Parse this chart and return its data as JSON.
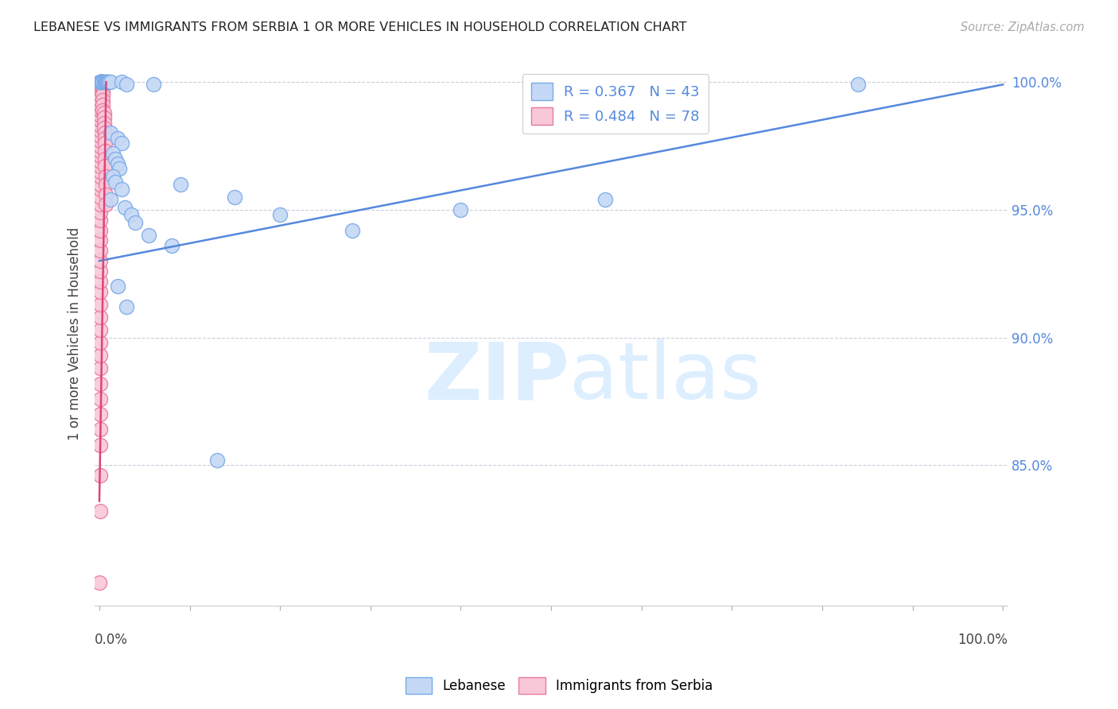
{
  "title": "LEBANESE VS IMMIGRANTS FROM SERBIA 1 OR MORE VEHICLES IN HOUSEHOLD CORRELATION CHART",
  "source": "Source: ZipAtlas.com",
  "ylabel": "1 or more Vehicles in Household",
  "legend_blue": "R = 0.367   N = 43",
  "legend_pink": "R = 0.484   N = 78",
  "legend_label_blue": "Lebanese",
  "legend_label_pink": "Immigrants from Serbia",
  "title_color": "#222222",
  "source_color": "#aaaaaa",
  "blue_color": "#c5d8f5",
  "blue_edge_color": "#7aaae8",
  "pink_color": "#f9c8d8",
  "pink_edge_color": "#e87aa0",
  "blue_trend_color": "#5588dd",
  "pink_trend_color": "#dd4477",
  "watermark_color": "#ddeeff",
  "ytick_vals": [
    0.85,
    0.9,
    0.95,
    1.0
  ],
  "ytick_labels": [
    "85.0%",
    "90.0%",
    "95.0%",
    "100.0%"
  ],
  "ylim": [
    0.795,
    1.008
  ],
  "xlim": [
    -0.005,
    1.005
  ],
  "blue_scatter": [
    [
      0.001,
      1.0
    ],
    [
      0.001,
      1.0
    ],
    [
      0.001,
      1.0
    ],
    [
      0.002,
      1.0
    ],
    [
      0.003,
      1.0
    ],
    [
      0.004,
      1.0
    ],
    [
      0.005,
      1.0
    ],
    [
      0.006,
      1.0
    ],
    [
      0.007,
      1.0
    ],
    [
      0.008,
      1.0
    ],
    [
      0.009,
      1.0
    ],
    [
      0.01,
      1.0
    ],
    [
      0.011,
      1.0
    ],
    [
      0.012,
      1.0
    ],
    [
      0.025,
      1.0
    ],
    [
      0.03,
      0.999
    ],
    [
      0.06,
      0.999
    ],
    [
      0.012,
      0.98
    ],
    [
      0.02,
      0.978
    ],
    [
      0.025,
      0.976
    ],
    [
      0.015,
      0.972
    ],
    [
      0.018,
      0.97
    ],
    [
      0.02,
      0.968
    ],
    [
      0.022,
      0.966
    ],
    [
      0.015,
      0.963
    ],
    [
      0.018,
      0.961
    ],
    [
      0.025,
      0.958
    ],
    [
      0.012,
      0.954
    ],
    [
      0.028,
      0.951
    ],
    [
      0.035,
      0.948
    ],
    [
      0.04,
      0.945
    ],
    [
      0.055,
      0.94
    ],
    [
      0.08,
      0.936
    ],
    [
      0.09,
      0.96
    ],
    [
      0.15,
      0.955
    ],
    [
      0.2,
      0.948
    ],
    [
      0.28,
      0.942
    ],
    [
      0.4,
      0.95
    ],
    [
      0.56,
      0.954
    ],
    [
      0.02,
      0.92
    ],
    [
      0.03,
      0.912
    ],
    [
      0.13,
      0.852
    ],
    [
      0.84,
      0.999
    ]
  ],
  "pink_scatter": [
    [
      0.0,
      0.804
    ],
    [
      0.001,
      0.832
    ],
    [
      0.001,
      0.846
    ],
    [
      0.001,
      0.858
    ],
    [
      0.001,
      0.864
    ],
    [
      0.001,
      0.87
    ],
    [
      0.001,
      0.876
    ],
    [
      0.001,
      0.882
    ],
    [
      0.001,
      0.888
    ],
    [
      0.001,
      0.893
    ],
    [
      0.001,
      0.898
    ],
    [
      0.001,
      0.903
    ],
    [
      0.001,
      0.908
    ],
    [
      0.001,
      0.913
    ],
    [
      0.001,
      0.918
    ],
    [
      0.001,
      0.922
    ],
    [
      0.001,
      0.926
    ],
    [
      0.001,
      0.93
    ],
    [
      0.001,
      0.934
    ],
    [
      0.001,
      0.938
    ],
    [
      0.001,
      0.942
    ],
    [
      0.001,
      0.946
    ],
    [
      0.001,
      0.949
    ],
    [
      0.001,
      0.952
    ],
    [
      0.001,
      0.955
    ],
    [
      0.001,
      0.958
    ],
    [
      0.001,
      0.96
    ],
    [
      0.001,
      0.963
    ],
    [
      0.001,
      0.965
    ],
    [
      0.001,
      0.967
    ],
    [
      0.001,
      0.969
    ],
    [
      0.001,
      0.971
    ],
    [
      0.001,
      0.973
    ],
    [
      0.001,
      0.975
    ],
    [
      0.001,
      0.977
    ],
    [
      0.001,
      0.979
    ],
    [
      0.001,
      0.981
    ],
    [
      0.001,
      0.983
    ],
    [
      0.001,
      0.985
    ],
    [
      0.001,
      0.987
    ],
    [
      0.001,
      0.989
    ],
    [
      0.001,
      0.991
    ],
    [
      0.001,
      0.993
    ],
    [
      0.001,
      0.995
    ],
    [
      0.001,
      0.997
    ],
    [
      0.001,
      0.999
    ],
    [
      0.001,
      1.0
    ],
    [
      0.002,
      1.0
    ],
    [
      0.002,
      1.0
    ],
    [
      0.002,
      1.0
    ],
    [
      0.002,
      1.0
    ],
    [
      0.002,
      1.0
    ],
    [
      0.002,
      1.0
    ],
    [
      0.003,
      1.0
    ],
    [
      0.003,
      1.0
    ],
    [
      0.003,
      1.0
    ],
    [
      0.003,
      0.999
    ],
    [
      0.003,
      0.998
    ],
    [
      0.003,
      0.997
    ],
    [
      0.004,
      0.996
    ],
    [
      0.004,
      0.995
    ],
    [
      0.004,
      0.993
    ],
    [
      0.004,
      0.991
    ],
    [
      0.004,
      0.989
    ],
    [
      0.005,
      0.988
    ],
    [
      0.005,
      0.986
    ],
    [
      0.005,
      0.984
    ],
    [
      0.005,
      0.982
    ],
    [
      0.006,
      0.98
    ],
    [
      0.006,
      0.978
    ],
    [
      0.006,
      0.976
    ],
    [
      0.006,
      0.973
    ],
    [
      0.006,
      0.97
    ],
    [
      0.006,
      0.967
    ],
    [
      0.007,
      0.963
    ],
    [
      0.007,
      0.96
    ],
    [
      0.007,
      0.956
    ],
    [
      0.007,
      0.952
    ]
  ],
  "blue_trendline_x": [
    0.0,
    1.0
  ],
  "blue_trendline_y": [
    0.93,
    0.999
  ],
  "pink_trendline_x": [
    0.0,
    0.0075
  ],
  "pink_trendline_y": [
    0.836,
    1.0
  ]
}
